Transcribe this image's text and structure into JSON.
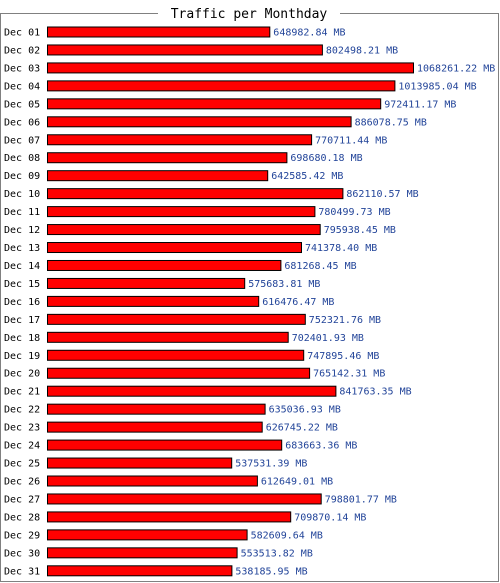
{
  "chart_data": {
    "type": "bar",
    "orientation": "horizontal",
    "title": "Traffic per Monthday",
    "unit": "MB",
    "categories": [
      "Dec 01",
      "Dec 02",
      "Dec 03",
      "Dec 04",
      "Dec 05",
      "Dec 06",
      "Dec 07",
      "Dec 08",
      "Dec 09",
      "Dec 10",
      "Dec 11",
      "Dec 12",
      "Dec 13",
      "Dec 14",
      "Dec 15",
      "Dec 16",
      "Dec 17",
      "Dec 18",
      "Dec 19",
      "Dec 20",
      "Dec 21",
      "Dec 22",
      "Dec 23",
      "Dec 24",
      "Dec 25",
      "Dec 26",
      "Dec 27",
      "Dec 28",
      "Dec 29",
      "Dec 30",
      "Dec 31"
    ],
    "values": [
      648982.84,
      802498.21,
      1068261.22,
      1013985.04,
      972411.17,
      886078.75,
      770711.44,
      698680.18,
      642585.42,
      862110.57,
      780499.73,
      795938.45,
      741378.4,
      681268.45,
      575683.81,
      616476.47,
      752321.76,
      702401.93,
      747895.46,
      765142.31,
      841763.35,
      635036.93,
      626745.22,
      683663.36,
      537531.39,
      612649.01,
      798801.77,
      709870.14,
      582609.64,
      553513.82,
      538185.95
    ],
    "value_labels": [
      "648982.84 MB",
      "802498.21 MB",
      "1068261.22 MB",
      "1013985.04 MB",
      "972411.17 MB",
      "886078.75 MB",
      "770711.44 MB",
      "698680.18 MB",
      "642585.42 MB",
      "862110.57 MB",
      "780499.73 MB",
      "795938.45 MB",
      "741378.40 MB",
      "681268.45 MB",
      "575683.81 MB",
      "616476.47 MB",
      "752321.76 MB",
      "702401.93 MB",
      "747895.46 MB",
      "765142.31 MB",
      "841763.35 MB",
      "635036.93 MB",
      "626745.22 MB",
      "683663.36 MB",
      "537531.39 MB",
      "612649.01 MB",
      "798801.77 MB",
      "709870.14 MB",
      "582609.64 MB",
      "553513.82 MB",
      "538185.95 MB"
    ],
    "xlim": [
      0,
      1068261.22
    ],
    "grid": false,
    "colors": {
      "bar_fill": "#ff0000",
      "bar_stroke": "#000000",
      "value_label": "#224499",
      "frame": "#808080",
      "background": "#ffffff"
    }
  }
}
